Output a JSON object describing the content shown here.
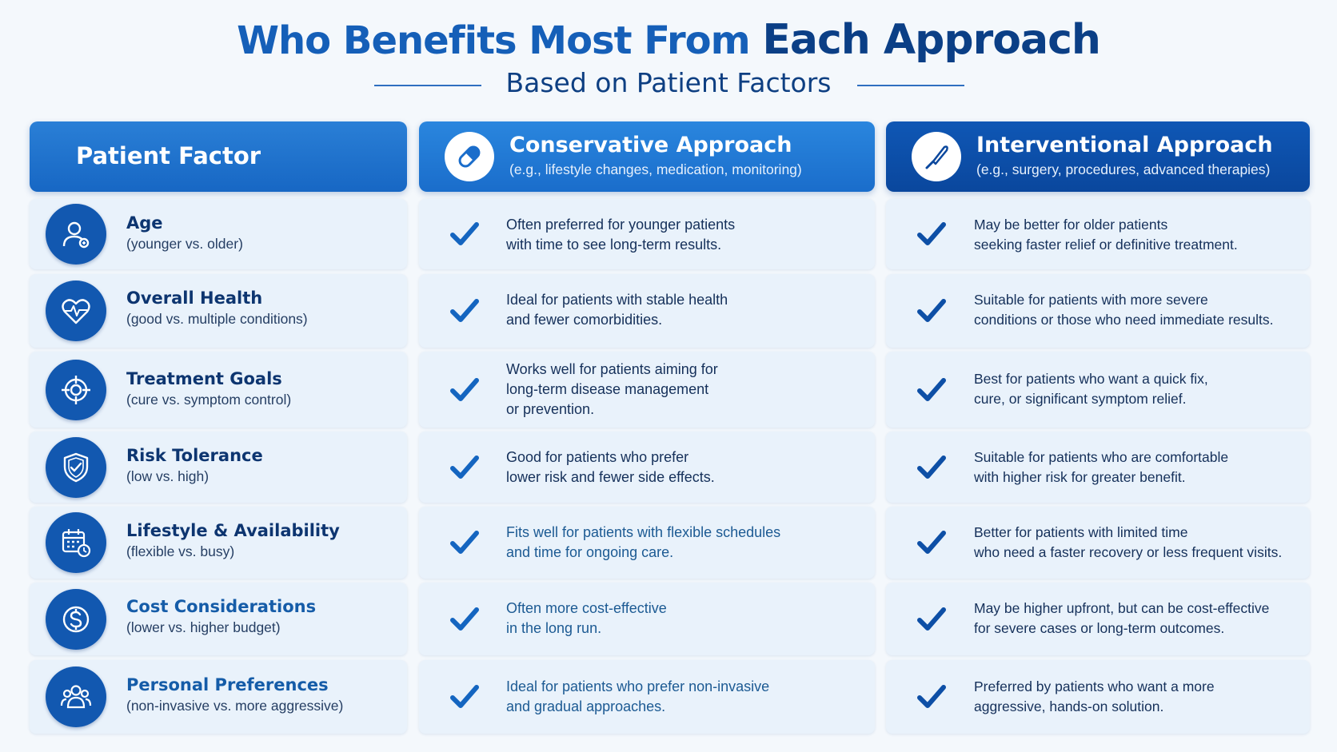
{
  "title_part1": "Who Benefits Most From",
  "title_part2": "Each Approach",
  "subtitle": "Based on Patient Factors",
  "headers": {
    "factor": "Patient Factor",
    "conservative_title": "Conservative Approach",
    "conservative_sub": "(e.g., lifestyle changes, medication, monitoring)",
    "interventional_title": "Interventional Approach",
    "interventional_sub": "(e.g., surgery, procedures, advanced therapies)"
  },
  "rows": [
    {
      "name": "Age",
      "sub": "(younger vs. older)",
      "icon": "person-icon",
      "conservative": [
        "Often preferred for younger patients",
        "with time to see long-term results."
      ],
      "interventional": [
        "May be better for older patients",
        "seeking faster relief or definitive treatment."
      ]
    },
    {
      "name": "Overall Health",
      "sub": "(good vs. multiple conditions)",
      "icon": "heart-pulse-icon",
      "conservative": [
        "Ideal for patients with stable health",
        "and fewer comorbidities."
      ],
      "interventional": [
        "Suitable for patients with more severe",
        "conditions or those who need immediate results."
      ]
    },
    {
      "name": "Treatment Goals",
      "sub": "(cure vs. symptom control)",
      "icon": "target-icon",
      "conservative": [
        "Works well for patients aiming for",
        "long-term disease management",
        "or prevention."
      ],
      "interventional": [
        "Best for patients who want a quick fix,",
        "cure, or significant symptom relief."
      ]
    },
    {
      "name": "Risk Tolerance",
      "sub": "(low vs. high)",
      "icon": "shield-check-icon",
      "conservative": [
        "Good for patients who prefer",
        "lower risk and fewer side effects."
      ],
      "interventional": [
        "Suitable for patients who are comfortable",
        "with higher risk for greater benefit."
      ]
    },
    {
      "name": "Lifestyle & Availability",
      "sub": "(flexible vs. busy)",
      "icon": "calendar-clock-icon",
      "conservative": [
        "Fits well for patients with flexible schedules",
        "and time for ongoing care."
      ],
      "interventional": [
        "Better for patients with limited time",
        "who need a faster recovery or less frequent visits."
      ]
    },
    {
      "name": "Cost Considerations",
      "sub": "(lower vs. higher budget)",
      "icon": "dollar-icon",
      "conservative": [
        "Often more cost-effective",
        "in the long run."
      ],
      "interventional": [
        "May be higher upfront, but can be cost-effective",
        "for severe cases or long-term outcomes."
      ]
    },
    {
      "name": "Personal Preferences",
      "sub": "(non-invasive vs. more aggressive)",
      "icon": "people-icon",
      "conservative": [
        "Ideal for patients who prefer non-invasive",
        "and gradual approaches."
      ],
      "interventional": [
        "Preferred by patients who want a more",
        "aggressive, hands-on solution."
      ]
    }
  ]
}
